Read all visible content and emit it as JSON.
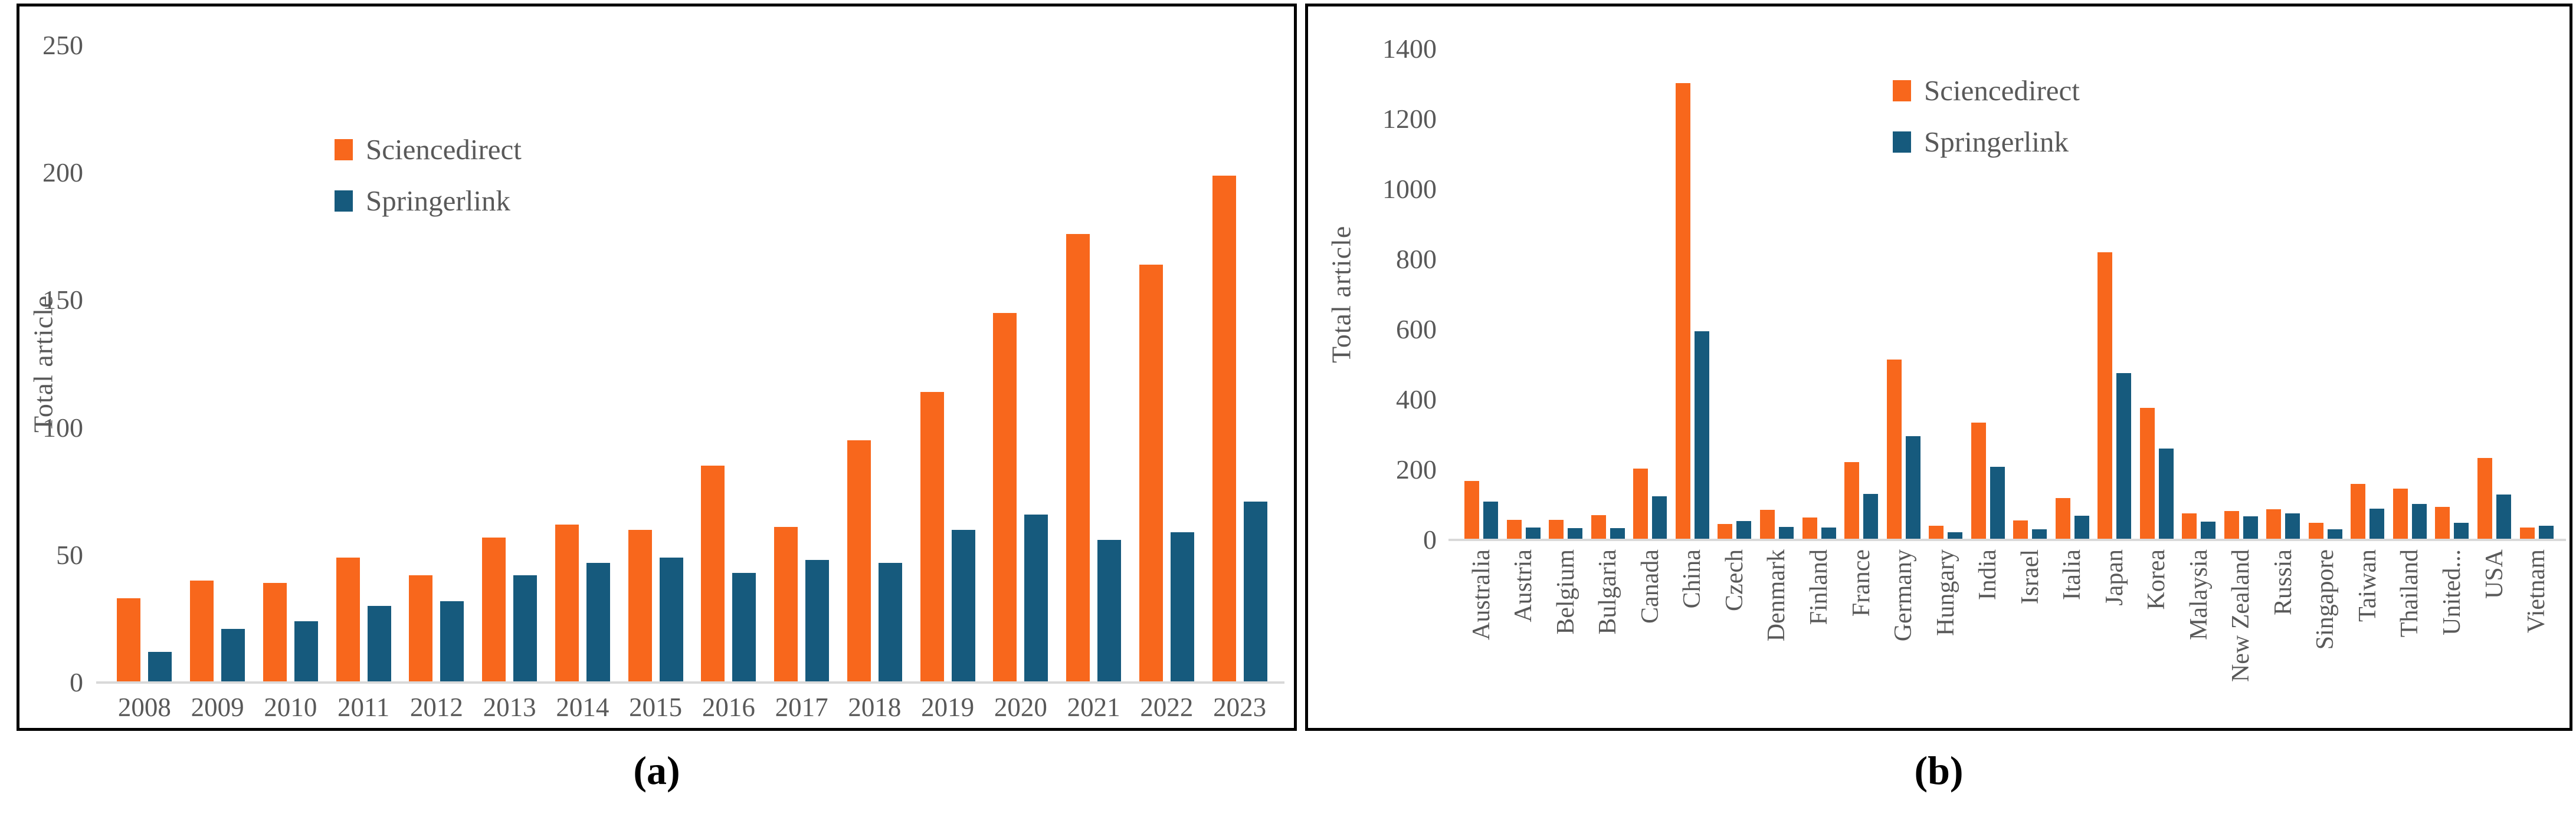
{
  "figure": {
    "caption_a": "(a)",
    "caption_b": "(b)"
  },
  "colors": {
    "sciencedirect_orange": "#F8671C",
    "springerlink_blue": "#165A7D",
    "tick_text_gray": "#595959",
    "axis_line_gray": "#D9D9D9",
    "panel_border_black": "#000000"
  },
  "chart_data": [
    {
      "type": "bar",
      "panel": "a",
      "title": "",
      "xlabel": "",
      "ylabel": "Total article",
      "ylim": [
        0,
        250
      ],
      "yticks": [
        0,
        50,
        100,
        150,
        200,
        250
      ],
      "grid": false,
      "legend_position": "inside-upper-left",
      "categories": [
        "2008",
        "2009",
        "2010",
        "2011",
        "2012",
        "2013",
        "2014",
        "2015",
        "2016",
        "2017",
        "2018",
        "2019",
        "2020",
        "2021",
        "2022",
        "2023"
      ],
      "series": [
        {
          "name": "Sciencedirect",
          "color": "#F8671C",
          "values": [
            33,
            40,
            39,
            49,
            42,
            57,
            62,
            60,
            85,
            61,
            95,
            114,
            145,
            176,
            164,
            199
          ]
        },
        {
          "name": "Springerlink",
          "color": "#165A7D",
          "values": [
            12,
            21,
            24,
            30,
            32,
            42,
            47,
            49,
            43,
            48,
            47,
            60,
            66,
            56,
            59,
            71
          ]
        }
      ]
    },
    {
      "type": "bar",
      "panel": "b",
      "title": "",
      "xlabel": "",
      "ylabel": "Total article",
      "ylim": [
        0,
        1400
      ],
      "yticks": [
        0,
        200,
        400,
        600,
        800,
        1000,
        1200,
        1400
      ],
      "grid": false,
      "legend_position": "inside-upper-right",
      "categories": [
        "Australia",
        "Austria",
        "Belgium",
        "Bulgaria",
        "Canada",
        "China",
        "Czech",
        "Denmark",
        "Finland",
        "France",
        "Germany",
        "Hungary",
        "India",
        "Israel",
        "Italia",
        "Japan",
        "Korea",
        "Malaysia",
        "New Zealand",
        "Russia",
        "Singapore",
        "Taiwan",
        "Thailand",
        "United...",
        "USA",
        "Vietnam"
      ],
      "series": [
        {
          "name": "Sciencedirect",
          "color": "#F8671C",
          "values": [
            168,
            58,
            58,
            70,
            203,
            1303,
            46,
            86,
            64,
            222,
            514,
            40,
            335,
            55,
            120,
            820,
            376,
            75,
            82,
            88,
            48,
            160,
            146,
            94,
            234,
            35
          ]
        },
        {
          "name": "Springerlink",
          "color": "#165A7D",
          "values": [
            110,
            36,
            34,
            34,
            124,
            595,
            54,
            37,
            35,
            131,
            296,
            22,
            208,
            31,
            69,
            475,
            260,
            52,
            67,
            76,
            30,
            89,
            103,
            49,
            129,
            41
          ]
        }
      ]
    }
  ]
}
